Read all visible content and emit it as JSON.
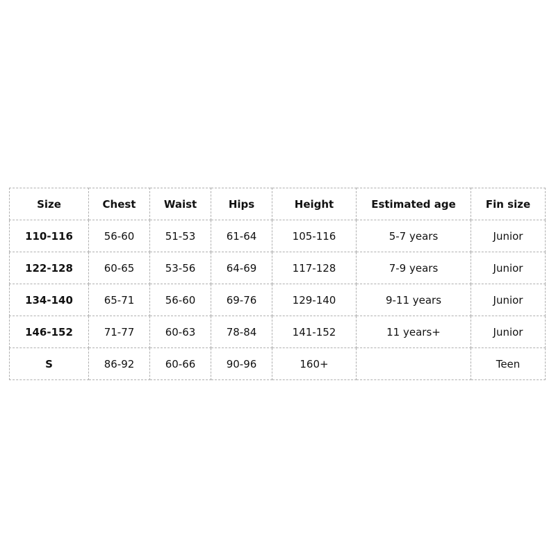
{
  "table": {
    "headers": [
      "Size",
      "Chest",
      "Waist",
      "Hips",
      "Height",
      "Estimated age",
      "Fin size"
    ],
    "rows": [
      [
        "110-116",
        "56-60",
        "51-53",
        "61-64",
        "105-116",
        "5-7 years",
        "Junior"
      ],
      [
        "122-128",
        "60-65",
        "53-56",
        "64-69",
        "117-128",
        "7-9 years",
        "Junior"
      ],
      [
        "134-140",
        "65-71",
        "56-60",
        "69-76",
        "129-140",
        "9-11 years",
        "Junior"
      ],
      [
        "146-152",
        "71-77",
        "60-63",
        "78-84",
        "141-152",
        "11 years+",
        "Junior"
      ],
      [
        "S",
        "86-92",
        "60-66",
        "90-96",
        "160+",
        "",
        "Teen"
      ]
    ]
  }
}
